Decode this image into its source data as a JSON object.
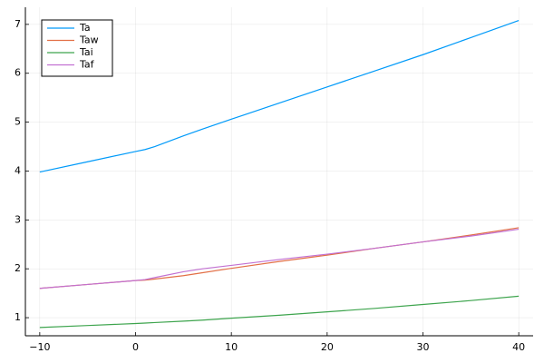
{
  "chart_data": {
    "type": "line",
    "x": [
      -10,
      -5,
      0,
      1,
      2,
      5,
      7,
      10,
      15,
      20,
      25,
      30,
      35,
      40
    ],
    "series": [
      {
        "name": "Ta",
        "color": "#009af9",
        "values": [
          3.98,
          4.19,
          4.4,
          4.44,
          4.5,
          4.72,
          4.86,
          5.06,
          5.39,
          5.72,
          6.05,
          6.38,
          6.73,
          7.08
        ]
      },
      {
        "name": "Taw",
        "color": "#e26f46",
        "values": [
          1.6,
          1.68,
          1.76,
          1.77,
          1.79,
          1.86,
          1.92,
          2.01,
          2.15,
          2.28,
          2.42,
          2.55,
          2.69,
          2.84
        ]
      },
      {
        "name": "Tai",
        "color": "#3da44d",
        "values": [
          0.8,
          0.84,
          0.88,
          0.89,
          0.9,
          0.93,
          0.95,
          0.99,
          1.05,
          1.12,
          1.19,
          1.27,
          1.35,
          1.44
        ]
      },
      {
        "name": "Taf",
        "color": "#c271d2",
        "values": [
          1.6,
          1.68,
          1.76,
          1.78,
          1.82,
          1.94,
          2.0,
          2.07,
          2.19,
          2.3,
          2.42,
          2.55,
          2.67,
          2.81
        ]
      }
    ],
    "xlim": [
      -11.5,
      41.5
    ],
    "xticks": [
      {
        "value": -10,
        "label": "−10"
      },
      0,
      10,
      20,
      30,
      40
    ],
    "ylim": [
      0.63,
      7.35
    ],
    "yticks": [
      1,
      2,
      3,
      4,
      5,
      6,
      7
    ],
    "grid": true,
    "legend": "top-left"
  }
}
